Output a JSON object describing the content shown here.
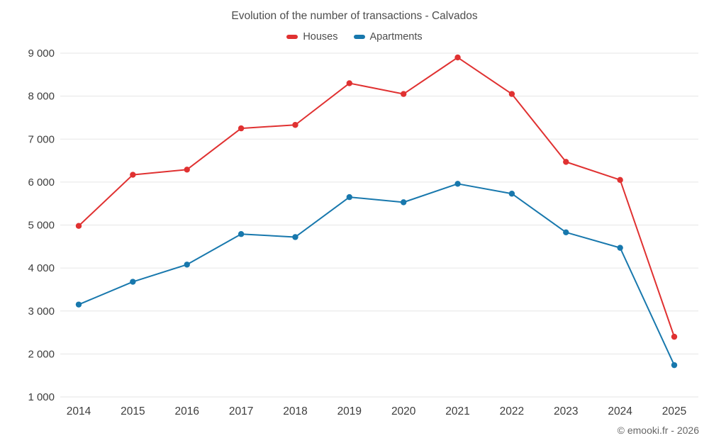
{
  "title": "Evolution of the number of transactions - Calvados",
  "legend": {
    "items": [
      {
        "label": "Houses",
        "color": "#e03131"
      },
      {
        "label": "Apartments",
        "color": "#1878ad"
      }
    ]
  },
  "footer": {
    "credit": "© emooki.fr - 2026"
  },
  "chart_data": {
    "type": "line",
    "title": "Evolution of the number of transactions - Calvados",
    "x": [
      2014,
      2015,
      2016,
      2017,
      2018,
      2019,
      2020,
      2021,
      2022,
      2023,
      2024,
      2025
    ],
    "series": [
      {
        "name": "Houses",
        "color": "#e03131",
        "values": [
          4980,
          6170,
          6290,
          7250,
          7330,
          8300,
          8050,
          8900,
          8050,
          6470,
          6050,
          2400
        ]
      },
      {
        "name": "Apartments",
        "color": "#1878ad",
        "values": [
          3150,
          3680,
          4080,
          4790,
          4720,
          5650,
          5530,
          5960,
          5730,
          4830,
          4470,
          1740
        ]
      }
    ],
    "xlabel": "",
    "ylabel": "",
    "ylim": [
      1000,
      9000
    ],
    "ytick_step": 1000,
    "grid": "horizontal",
    "gridline_color": "#e6e6e6",
    "tick_label_color": "#3d3d3d",
    "legend_position": "top",
    "marker": "circle"
  }
}
